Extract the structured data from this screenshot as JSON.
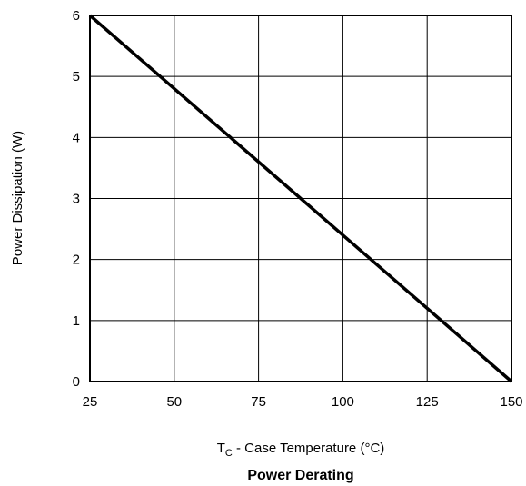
{
  "chart_data": {
    "type": "line",
    "title": "Power Derating",
    "xlabel_main": "T",
    "xlabel_sub": "C",
    "xlabel_rest": " - Case Temperature (°C)",
    "ylabel": "Power Dissipation (W)",
    "xlim": [
      25,
      150
    ],
    "ylim": [
      0,
      6
    ],
    "grid": true,
    "x_ticks": [
      "25",
      "50",
      "75",
      "100",
      "125",
      "150"
    ],
    "y_ticks": [
      "0",
      "1",
      "2",
      "3",
      "4",
      "5",
      "6"
    ],
    "series": [
      {
        "x": [
          25,
          150
        ],
        "y": [
          6,
          0
        ]
      }
    ]
  }
}
